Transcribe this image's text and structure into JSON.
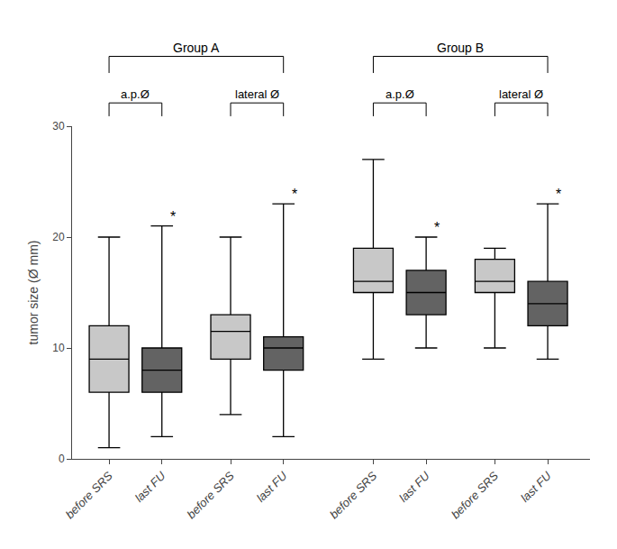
{
  "chart_data": {
    "type": "box",
    "ylabel": "tumor size (Ø mm)",
    "ylim": [
      0,
      30
    ],
    "yticks": [
      0,
      10,
      20,
      30
    ],
    "grid": false,
    "groups": [
      {
        "name": "Group A",
        "subgroups": [
          {
            "name": "a.p.Ø",
            "boxes": [
              {
                "label": "before SRS",
                "color": "#c8c8c8",
                "whislo": 1.0,
                "q1": 6.0,
                "med": 9.0,
                "q3": 12.0,
                "whishi": 20.0
              },
              {
                "label": "last FU",
                "color": "#636363",
                "whislo": 2.0,
                "q1": 6.0,
                "med": 8.0,
                "q3": 10.0,
                "whishi": 21.0,
                "annotation": "*"
              }
            ]
          },
          {
            "name": "lateral Ø",
            "boxes": [
              {
                "label": "before SRS",
                "color": "#c8c8c8",
                "whislo": 4.0,
                "q1": 9.0,
                "med": 11.5,
                "q3": 13.0,
                "whishi": 20.0
              },
              {
                "label": "last FU",
                "color": "#636363",
                "whislo": 2.0,
                "q1": 8.0,
                "med": 10.0,
                "q3": 11.0,
                "whishi": 23.0,
                "annotation": "*"
              }
            ]
          }
        ]
      },
      {
        "name": "Group B",
        "subgroups": [
          {
            "name": "a.p.Ø",
            "boxes": [
              {
                "label": "before SRS",
                "color": "#c8c8c8",
                "whislo": 9.0,
                "q1": 15.0,
                "med": 16.0,
                "q3": 19.0,
                "whishi": 27.0
              },
              {
                "label": "last FU",
                "color": "#636363",
                "whislo": 10.0,
                "q1": 13.0,
                "med": 15.0,
                "q3": 17.0,
                "whishi": 20.0,
                "annotation": "*"
              }
            ]
          },
          {
            "name": "lateral Ø",
            "boxes": [
              {
                "label": "before SRS",
                "color": "#c8c8c8",
                "whislo": 10.0,
                "q1": 15.0,
                "med": 16.0,
                "q3": 18.0,
                "whishi": 19.0
              },
              {
                "label": "last FU",
                "color": "#636363",
                "whislo": 9.0,
                "q1": 12.0,
                "med": 14.0,
                "q3": 16.0,
                "whishi": 23.0,
                "annotation": "*"
              }
            ]
          }
        ]
      }
    ]
  }
}
